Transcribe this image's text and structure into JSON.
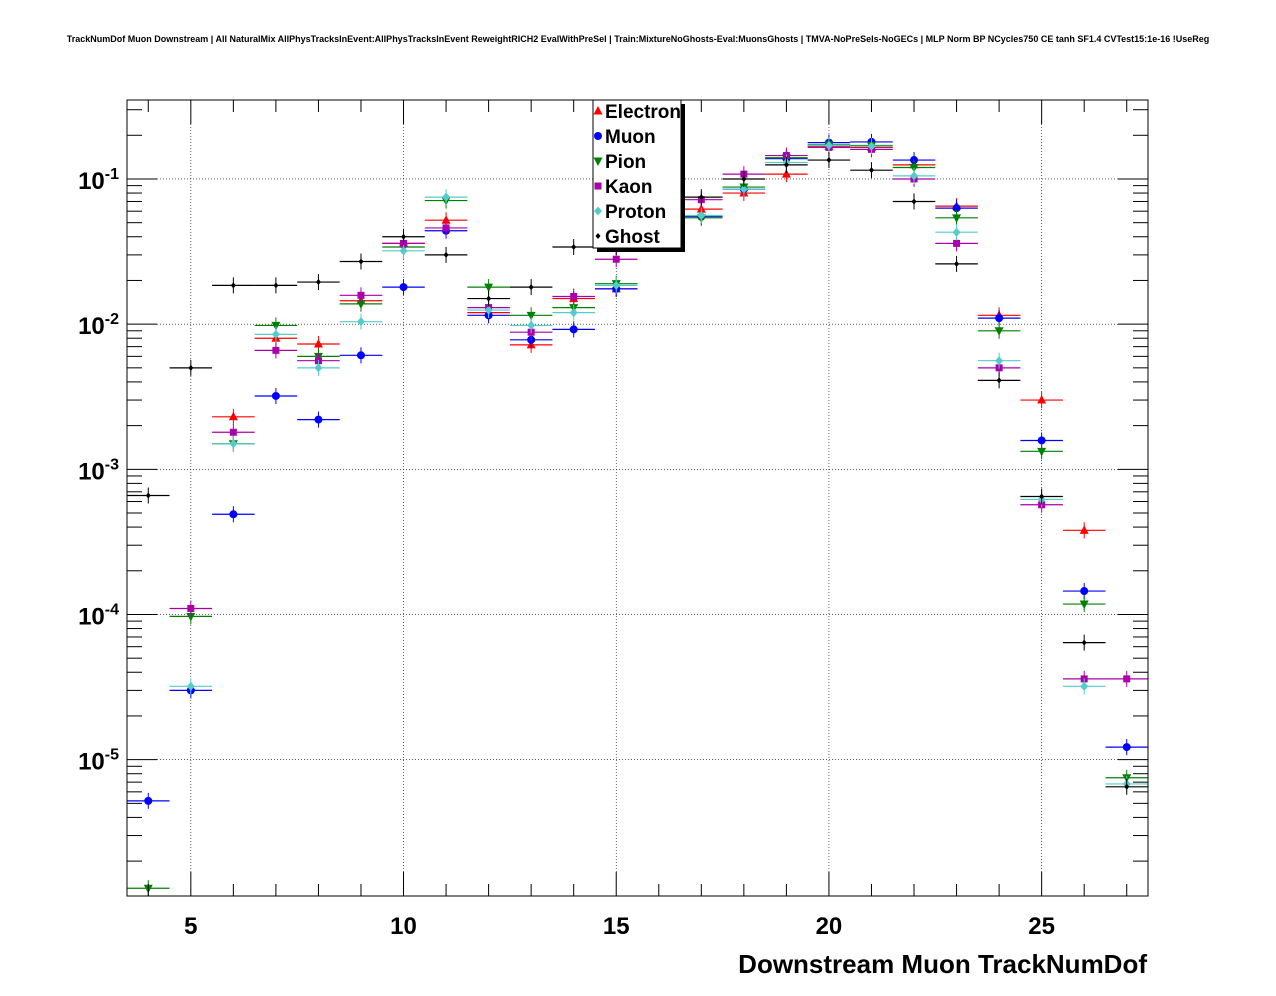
{
  "chart_data": {
    "type": "scatter",
    "title": "TrackNumDof Muon Downstream | All NaturalMix AllPhysTracksInEvent:AllPhysTracksInEvent ReweightRICH2 EvalWithPreSel | Train:MixtureNoGhosts-Eval:MuonsGhosts | TMVA-NoPreSels-NoGECs | MLP Norm BP NCycles750 CE tanh SF1.4 CVTest15:1e-16 !UseReg",
    "xlabel": "Downstream Muon TrackNumDof",
    "ylabel": "",
    "xlim": [
      3.5,
      27.5
    ],
    "ylim": [
      1.15e-06,
      0.35
    ],
    "yscale": "log",
    "grid": true,
    "legend_position": "top-center",
    "x_ticks": [
      5,
      10,
      15,
      20,
      25
    ],
    "x_tick_labels": [
      "5",
      "10",
      "15",
      "20",
      "25"
    ],
    "y_ticks": [
      {
        "value": 1e-05,
        "base": "10",
        "exp": "-5"
      },
      {
        "value": 0.0001,
        "base": "10",
        "exp": "-4"
      },
      {
        "value": 0.001,
        "base": "10",
        "exp": "-3"
      },
      {
        "value": 0.01,
        "base": "10",
        "exp": "-2"
      },
      {
        "value": 0.1,
        "base": "10",
        "exp": "-1"
      }
    ],
    "series": [
      {
        "name": "Electron",
        "color": "#ff0000",
        "marker": "triangle-up",
        "points": [
          [
            6,
            0.0023
          ],
          [
            7,
            0.008
          ],
          [
            8,
            0.0073
          ],
          [
            9,
            0.0145
          ],
          [
            10,
            0.036
          ],
          [
            11,
            0.052
          ],
          [
            12,
            0.012
          ],
          [
            13,
            0.0072
          ],
          [
            14,
            0.015
          ],
          [
            15,
            0.0175
          ],
          [
            16,
            0.045
          ],
          [
            17,
            0.062
          ],
          [
            18,
            0.08
          ],
          [
            19,
            0.108
          ],
          [
            20,
            0.168
          ],
          [
            21,
            0.165
          ],
          [
            22,
            0.125
          ],
          [
            23,
            0.065
          ],
          [
            24,
            0.0115
          ],
          [
            25,
            0.003
          ],
          [
            26,
            0.00038
          ]
        ]
      },
      {
        "name": "Muon",
        "color": "#0000ff",
        "marker": "circle",
        "points": [
          [
            4,
            5.2e-06
          ],
          [
            5,
            3e-05
          ],
          [
            6,
            0.00049
          ],
          [
            7,
            0.0032
          ],
          [
            8,
            0.0022
          ],
          [
            9,
            0.0061
          ],
          [
            10,
            0.018
          ],
          [
            11,
            0.044
          ],
          [
            12,
            0.0115
          ],
          [
            13,
            0.0078
          ],
          [
            14,
            0.0092
          ],
          [
            15,
            0.0175
          ],
          [
            16,
            0.055
          ],
          [
            17,
            0.055
          ],
          [
            18,
            0.085
          ],
          [
            19,
            0.138
          ],
          [
            20,
            0.178
          ],
          [
            21,
            0.18
          ],
          [
            22,
            0.135
          ],
          [
            23,
            0.063
          ],
          [
            24,
            0.011
          ],
          [
            25,
            0.00158
          ],
          [
            26,
            0.000145
          ],
          [
            27,
            1.22e-05
          ]
        ]
      },
      {
        "name": "Pion",
        "color": "#008000",
        "marker": "triangle-down",
        "points": [
          [
            4,
            1.3e-06
          ],
          [
            5,
            9.7e-05
          ],
          [
            6,
            0.0015
          ],
          [
            7,
            0.0098
          ],
          [
            8,
            0.006
          ],
          [
            9,
            0.0138
          ],
          [
            10,
            0.034
          ],
          [
            11,
            0.071
          ],
          [
            12,
            0.018
          ],
          [
            13,
            0.0115
          ],
          [
            14,
            0.013
          ],
          [
            15,
            0.019
          ],
          [
            16,
            0.048
          ],
          [
            17,
            0.054
          ],
          [
            18,
            0.088
          ],
          [
            19,
            0.14
          ],
          [
            20,
            0.172
          ],
          [
            21,
            0.17
          ],
          [
            22,
            0.12
          ],
          [
            23,
            0.054
          ],
          [
            24,
            0.009
          ],
          [
            25,
            0.00133
          ],
          [
            26,
            0.000118
          ],
          [
            27,
            7.5e-06
          ]
        ]
      },
      {
        "name": "Kaon",
        "color": "#aa00aa",
        "marker": "square",
        "points": [
          [
            5,
            0.00011
          ],
          [
            6,
            0.0018
          ],
          [
            7,
            0.0066
          ],
          [
            8,
            0.0056
          ],
          [
            9,
            0.0158
          ],
          [
            10,
            0.036
          ],
          [
            11,
            0.046
          ],
          [
            12,
            0.013
          ],
          [
            13,
            0.0088
          ],
          [
            14,
            0.0155
          ],
          [
            15,
            0.028
          ],
          [
            16,
            0.05
          ],
          [
            17,
            0.072
          ],
          [
            18,
            0.108
          ],
          [
            19,
            0.145
          ],
          [
            20,
            0.165
          ],
          [
            21,
            0.16
          ],
          [
            22,
            0.1
          ],
          [
            23,
            0.036
          ],
          [
            24,
            0.005
          ],
          [
            25,
            0.00057
          ],
          [
            26,
            3.6e-05
          ],
          [
            27,
            3.6e-05
          ]
        ]
      },
      {
        "name": "Proton",
        "color": "#55cccc",
        "marker": "diamond",
        "points": [
          [
            5,
            3.2e-05
          ],
          [
            6,
            0.0015
          ],
          [
            7,
            0.0085
          ],
          [
            8,
            0.005
          ],
          [
            9,
            0.0104
          ],
          [
            10,
            0.032
          ],
          [
            11,
            0.075
          ],
          [
            12,
            0.0125
          ],
          [
            13,
            0.0098
          ],
          [
            14,
            0.012
          ],
          [
            15,
            0.0185
          ],
          [
            16,
            0.05
          ],
          [
            17,
            0.056
          ],
          [
            18,
            0.085
          ],
          [
            19,
            0.13
          ],
          [
            20,
            0.17
          ],
          [
            21,
            0.168
          ],
          [
            22,
            0.105
          ],
          [
            23,
            0.043
          ],
          [
            24,
            0.0056
          ],
          [
            25,
            0.00062
          ],
          [
            26,
            3.2e-05
          ],
          [
            27,
            6.8e-06
          ]
        ]
      },
      {
        "name": "Ghost",
        "color": "#000000",
        "marker": "small-diamond",
        "points": [
          [
            4,
            0.00066
          ],
          [
            5,
            0.005
          ],
          [
            6,
            0.0185
          ],
          [
            7,
            0.0185
          ],
          [
            8,
            0.0195
          ],
          [
            9,
            0.027
          ],
          [
            10,
            0.04
          ],
          [
            11,
            0.03
          ],
          [
            12,
            0.015
          ],
          [
            13,
            0.018
          ],
          [
            14,
            0.034
          ],
          [
            15,
            0.034
          ],
          [
            16,
            0.075
          ],
          [
            17,
            0.075
          ],
          [
            18,
            0.1
          ],
          [
            19,
            0.125
          ],
          [
            20,
            0.135
          ],
          [
            21,
            0.115
          ],
          [
            22,
            0.07
          ],
          [
            23,
            0.026
          ],
          [
            24,
            0.0041
          ],
          [
            25,
            0.00065
          ],
          [
            26,
            6.4e-05
          ],
          [
            27,
            6.5e-06
          ]
        ]
      }
    ]
  }
}
